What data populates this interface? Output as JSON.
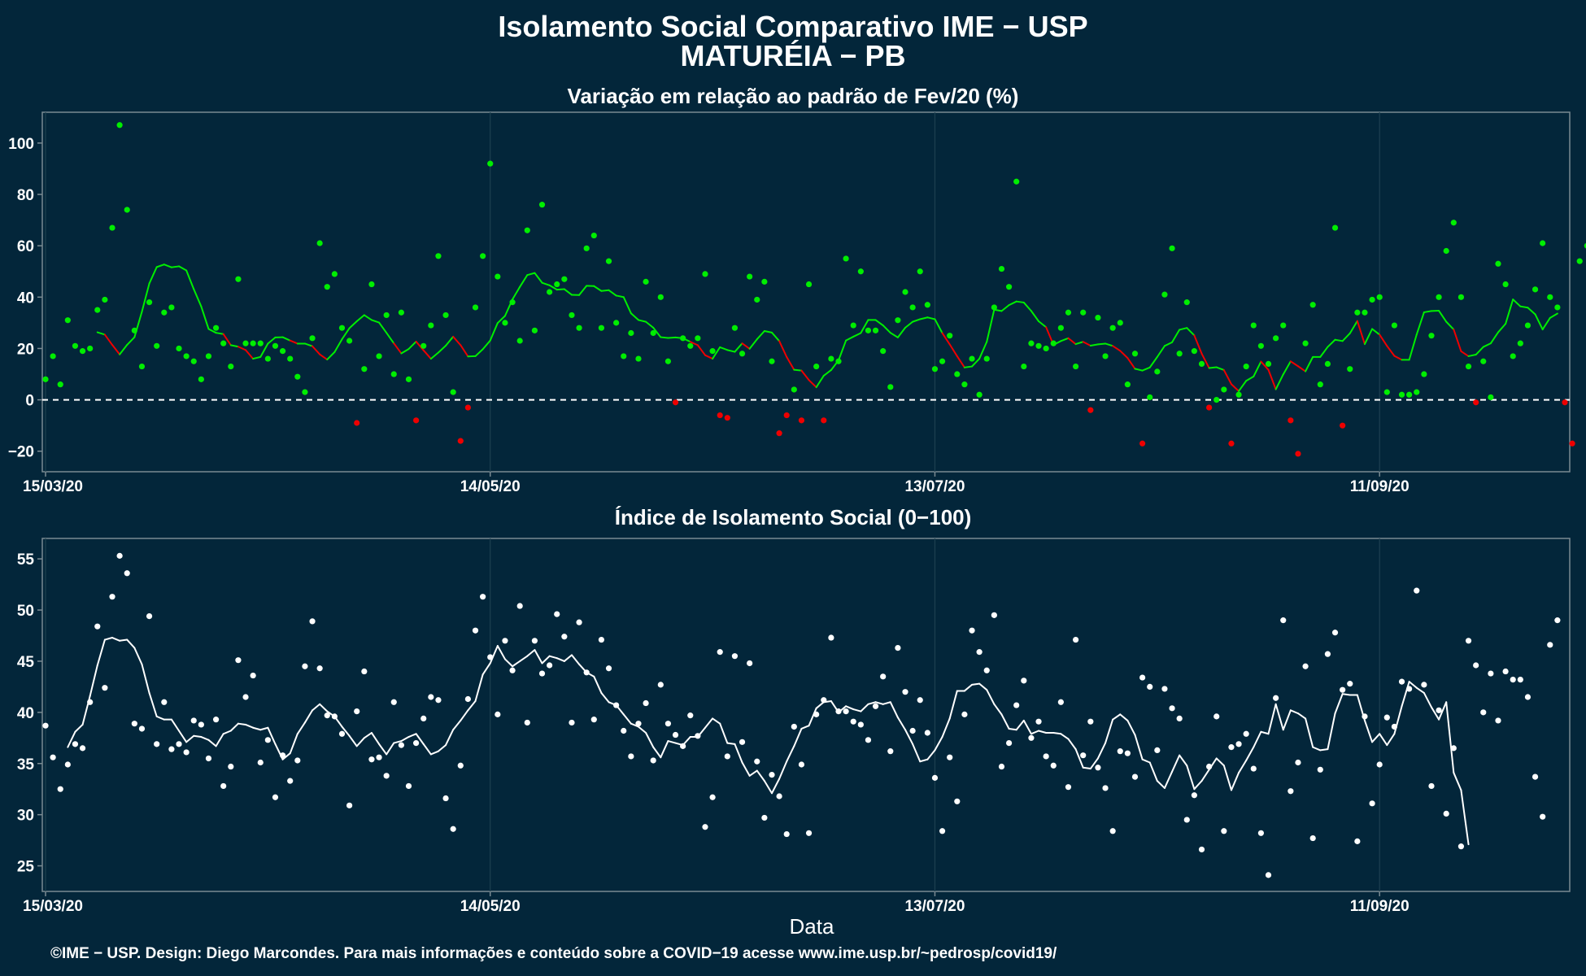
{
  "title": "Isolamento Social Comparativo IME − USP",
  "subtitle": "MATURÉIA − PB",
  "footer": "©IME − USP. Design: Diego Marcondes. Para mais informações e conteúdo sobre a COVID−19 acesse www.ime.usp.br/~pedrosp/covid19/",
  "colors": {
    "background": "#03263a",
    "panel_border": "#7a8a92",
    "grid": "#1d4050",
    "positive": "#00ee00",
    "negative": "#ee0000",
    "index": "#ffffff"
  },
  "chart_data": [
    {
      "type": "scatter",
      "title": "Variação em relação ao padrão de Fev/20 (%)",
      "xlabel": "",
      "ylabel": "",
      "x_start": "15/03/20",
      "x_end": "05/10/20",
      "xlim_days": [
        0,
        205
      ],
      "x_ticks": [
        "15/03/20",
        "14/05/20",
        "13/07/20",
        "11/09/20"
      ],
      "ylim": [
        -28,
        112
      ],
      "y_ticks": [
        "−20",
        "0",
        "20",
        "40",
        "60",
        "80",
        "100"
      ],
      "y_tick_values": [
        -20,
        0,
        20,
        40,
        60,
        80,
        100
      ],
      "reference_line": 0,
      "legend": "none",
      "series": [
        {
          "kind": "points",
          "values": [
            8,
            17,
            6,
            31,
            21,
            19,
            20,
            35,
            39,
            67,
            107,
            74,
            27,
            13,
            38,
            21,
            34,
            36,
            20,
            17,
            15,
            8,
            17,
            28,
            22,
            13,
            47,
            22,
            22,
            22,
            16,
            21,
            19,
            16,
            9,
            3,
            24,
            61,
            44,
            49,
            28,
            23,
            -9,
            12,
            45,
            17,
            33,
            10,
            34,
            8,
            -8,
            21,
            29,
            56,
            33,
            3,
            -16,
            -3,
            36,
            56,
            92,
            48,
            30,
            38,
            23,
            66,
            27,
            76,
            42,
            45,
            47,
            33,
            28,
            59,
            64,
            28,
            54,
            30,
            17,
            26,
            16,
            46,
            26,
            40,
            15,
            -1,
            24,
            21,
            24,
            49,
            19,
            -6,
            -7,
            28,
            18,
            48,
            39,
            46,
            15,
            -13,
            -6,
            4,
            -8,
            45,
            13,
            -8,
            16,
            15,
            55,
            29,
            50,
            27,
            27,
            19,
            5,
            31,
            42,
            36,
            50,
            37,
            12,
            15,
            25,
            10,
            6,
            16,
            2,
            16,
            36,
            51,
            44,
            85,
            13,
            22,
            21,
            20,
            22,
            28,
            34,
            13,
            34,
            -4,
            32,
            17,
            28,
            30,
            6,
            18,
            -17,
            1,
            11,
            41,
            59,
            18,
            38,
            19,
            14,
            -3,
            0,
            4,
            -17,
            2,
            13,
            29,
            21,
            14,
            24,
            29,
            -8,
            -21,
            22,
            37,
            6,
            14,
            67,
            -10,
            12,
            34,
            34,
            39,
            40,
            3,
            29,
            2,
            2,
            3,
            10,
            25,
            40,
            58,
            69,
            40,
            13,
            -1,
            15,
            1,
            53,
            45,
            17,
            22,
            29,
            43,
            61,
            40,
            36,
            -1,
            -17,
            54,
            60
          ]
        },
        {
          "kind": "moving_average",
          "values": [
            null,
            null,
            null,
            null,
            null,
            null,
            null,
            26.3,
            25.4,
            21.4,
            17.7,
            21.4,
            24.4,
            34.3,
            45.3,
            51.7,
            52.7,
            51.6,
            52.0,
            50.4,
            43.1,
            36.4,
            27.6,
            26.1,
            25.6,
            21.3,
            20.7,
            19.4,
            16.0,
            16.7,
            21.9,
            24.3,
            24.4,
            23.1,
            21.9,
            21.9,
            20.9,
            17.7,
            15.7,
            18.6,
            23.6,
            27.9,
            30.6,
            33.0,
            31.1,
            30.1,
            26.1,
            22.0,
            18.1,
            19.8,
            22.7,
            19.3,
            16.0,
            18.4,
            21.1,
            24.6,
            21.3,
            16.9,
            17.0,
            19.7,
            23.1,
            29.9,
            32.7,
            39.1,
            44.0,
            48.6,
            49.4,
            45.6,
            44.6,
            42.9,
            43.1,
            40.9,
            40.8,
            44.4,
            44.3,
            42.4,
            42.7,
            40.6,
            40.0,
            33.7,
            31.1,
            30.4,
            28.1,
            24.4,
            24.1,
            24.3,
            24.0,
            22.6,
            21.3,
            17.4,
            16.0,
            20.5,
            19.4,
            18.7,
            22.0,
            19.9,
            23.6,
            26.8,
            26.2,
            22.9,
            16.7,
            11.7,
            11.4,
            7.7,
            4.9,
            9.4,
            11.6,
            15.4,
            23.1,
            24.6,
            26.0,
            31.1,
            31.1,
            29.0,
            26.1,
            24.3,
            28.1,
            30.4,
            31.4,
            32.1,
            31.4,
            26.0,
            21.6,
            17.0,
            12.6,
            13.0,
            16.0,
            22.6,
            35.1,
            34.6,
            36.9,
            38.3,
            37.9,
            34.6,
            30.6,
            28.3,
            21.4,
            22.9,
            24.0,
            21.7,
            22.6,
            21.1,
            21.6,
            21.9,
            21.0,
            19.1,
            16.3,
            12.1,
            11.4,
            12.6,
            16.7,
            21.0,
            22.4,
            27.3,
            28.0,
            25.1,
            18.0,
            12.4,
            12.7,
            11.6,
            6.1,
            3.4,
            7.4,
            9.1,
            14.9,
            11.7,
            4.1,
            9.9,
            15.0,
            13.1,
            11.1,
            16.7,
            16.7,
            20.6,
            23.4,
            22.9,
            25.9,
            30.7,
            21.7,
            27.6,
            25.4,
            21.0,
            17.1,
            15.6,
            15.6,
            25.4,
            34.1,
            34.6,
            34.7,
            30.4,
            27.4,
            18.9,
            17.0,
            17.6,
            20.6,
            22.0,
            26.3,
            29.6,
            39.1,
            36.4,
            35.9,
            33.3,
            27.4,
            31.9,
            33.6
          ]
        }
      ]
    },
    {
      "type": "scatter",
      "title": "Índice de Isolamento Social (0−100)",
      "xlabel": "Data",
      "ylabel": "",
      "x_start": "15/03/20",
      "x_end": "05/10/20",
      "xlim_days": [
        0,
        205
      ],
      "x_ticks": [
        "15/03/20",
        "14/05/20",
        "13/07/20",
        "11/09/20"
      ],
      "ylim": [
        22.5,
        57
      ],
      "y_ticks": [
        "25",
        "30",
        "35",
        "40",
        "45",
        "50",
        "55"
      ],
      "y_tick_values": [
        25,
        30,
        35,
        40,
        45,
        50,
        55
      ],
      "legend": "none",
      "series": [
        {
          "kind": "points",
          "values": [
            38.7,
            35.6,
            32.5,
            34.9,
            36.9,
            36.5,
            41.0,
            48.4,
            42.4,
            51.3,
            55.3,
            53.6,
            38.9,
            38.4,
            49.4,
            36.9,
            41.0,
            36.4,
            36.9,
            36.1,
            39.2,
            38.8,
            35.5,
            39.3,
            32.8,
            34.7,
            45.1,
            41.5,
            43.6,
            35.1,
            37.3,
            31.7,
            35.8,
            33.3,
            35.3,
            44.5,
            48.9,
            44.3,
            39.7,
            39.6,
            37.9,
            30.9,
            40.1,
            44.0,
            35.4,
            35.6,
            33.8,
            41.0,
            36.8,
            32.8,
            37.0,
            39.4,
            41.5,
            41.2,
            31.6,
            28.6,
            34.8,
            41.3,
            48.0,
            51.3,
            45.4,
            39.8,
            47.0,
            44.1,
            50.4,
            39.0,
            47.0,
            43.8,
            44.6,
            49.6,
            47.4,
            39.0,
            48.8,
            43.9,
            39.3,
            47.1,
            44.3,
            40.7,
            38.2,
            35.7,
            38.9,
            40.9,
            35.3,
            42.7,
            38.9,
            37.8,
            36.7,
            39.7,
            37.7,
            28.8,
            31.7,
            45.9,
            35.7,
            45.5,
            37.1,
            44.8,
            35.2,
            29.7,
            33.9,
            31.8,
            28.1,
            38.6,
            34.9,
            28.2,
            39.8,
            41.2,
            47.3,
            40.1,
            40.1,
            39.1,
            38.8,
            37.3,
            40.6,
            43.5,
            36.2,
            46.3,
            42.0,
            38.2,
            41.2,
            38.0,
            33.6,
            28.4,
            35.6,
            31.3,
            39.8,
            48.0,
            45.9,
            44.1,
            49.5,
            34.7,
            37.0,
            40.7,
            43.1,
            37.5,
            39.1,
            35.7,
            34.8,
            41.0,
            32.7,
            47.1,
            35.8,
            39.1,
            34.6,
            32.6,
            28.4,
            36.2,
            36.0,
            33.7,
            43.4,
            42.5,
            36.3,
            42.3,
            40.4,
            39.4,
            29.5,
            31.9,
            26.6,
            34.7,
            39.6,
            28.4,
            36.6,
            36.9,
            37.9,
            34.5,
            28.2,
            24.1,
            41.4,
            49.0,
            32.3,
            35.1,
            44.5,
            27.7,
            34.4,
            45.7,
            47.8,
            42.2,
            42.8,
            27.4,
            39.6,
            31.1,
            34.9,
            39.5,
            38.6,
            43.0,
            42.3,
            51.9,
            42.7,
            32.8,
            40.2,
            30.1,
            36.5,
            26.9,
            47.0,
            44.6,
            40.0,
            43.8,
            39.2,
            44.0,
            43.2,
            43.2,
            41.5,
            33.7,
            29.8,
            46.6,
            49.0
          ]
        },
        {
          "kind": "moving_average",
          "values": [
            null,
            null,
            null,
            36.6,
            38.1,
            38.8,
            41.6,
            44.6,
            47.1,
            47.3,
            47.0,
            47.1,
            46.3,
            44.7,
            41.9,
            39.6,
            39.3,
            39.3,
            38.2,
            37.1,
            37.7,
            37.6,
            37.3,
            36.7,
            37.9,
            38.2,
            38.9,
            38.8,
            38.5,
            38.3,
            38.5,
            36.9,
            35.4,
            36.0,
            37.9,
            39.0,
            40.2,
            40.8,
            40.1,
            39.6,
            38.6,
            37.7,
            36.7,
            37.5,
            38.0,
            36.9,
            35.9,
            37.0,
            37.2,
            37.6,
            37.9,
            36.9,
            35.9,
            36.2,
            36.8,
            38.3,
            39.2,
            40.2,
            41.1,
            43.7,
            44.8,
            46.5,
            45.2,
            44.5,
            45.0,
            45.5,
            46.1,
            44.8,
            45.5,
            45.3,
            45.0,
            45.6,
            44.7,
            43.9,
            43.5,
            41.9,
            41.0,
            40.7,
            39.8,
            38.9,
            38.6,
            38.0,
            36.6,
            35.6,
            37.2,
            37.0,
            36.8,
            37.6,
            37.6,
            38.5,
            39.4,
            38.9,
            37.0,
            36.9,
            35.1,
            33.8,
            34.3,
            33.3,
            32.1,
            33.5,
            35.2,
            36.7,
            38.4,
            38.7,
            40.4,
            41.0,
            41.1,
            40.0,
            40.6,
            40.3,
            40.1,
            40.8,
            41.0,
            40.8,
            41.0,
            39.5,
            38.3,
            36.9,
            35.2,
            35.4,
            36.3,
            37.6,
            39.4,
            42.1,
            42.1,
            42.7,
            42.8,
            42.2,
            40.8,
            39.8,
            38.4,
            38.3,
            39.2,
            37.9,
            38.2,
            38.0,
            38.0,
            37.9,
            37.4,
            36.4,
            34.6,
            34.5,
            35.5,
            37.0,
            39.3,
            39.8,
            39.2,
            37.8,
            35.4,
            35.1,
            33.3,
            32.6,
            34.2,
            35.8,
            34.8,
            32.5,
            33.3,
            34.4,
            35.5,
            34.8,
            32.4,
            34.1,
            35.3,
            36.6,
            38.1,
            37.9,
            40.8,
            38.3,
            40.2,
            39.9,
            39.4,
            36.6,
            36.3,
            36.4,
            39.9,
            41.8,
            41.7,
            41.7,
            39.2,
            37.1,
            37.9,
            36.8,
            37.9,
            40.6,
            43.0,
            42.4,
            41.9,
            40.5,
            39.3,
            41.0,
            34.1,
            32.4,
            27.1
          ]
        }
      ]
    }
  ]
}
